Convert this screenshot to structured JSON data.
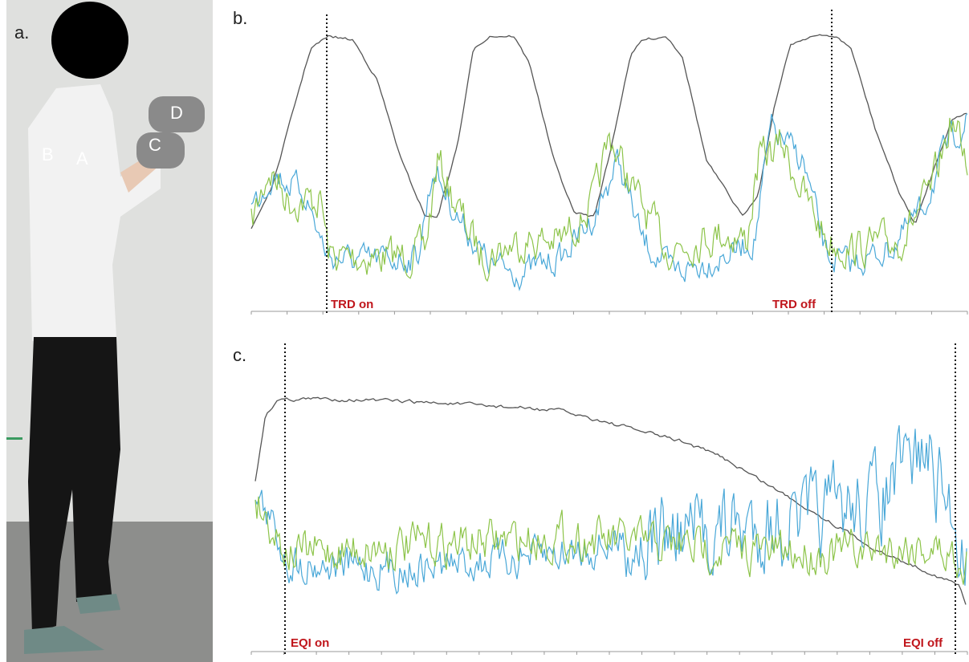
{
  "panels": {
    "a": {
      "label": "a.",
      "markers": [
        "A",
        "B",
        "C",
        "D"
      ]
    },
    "b": {
      "label": "b.",
      "events": [
        "TRD on",
        "TRD off"
      ]
    },
    "c": {
      "label": "c.",
      "events": [
        "EQI on",
        "EQI off"
      ]
    }
  }
}
